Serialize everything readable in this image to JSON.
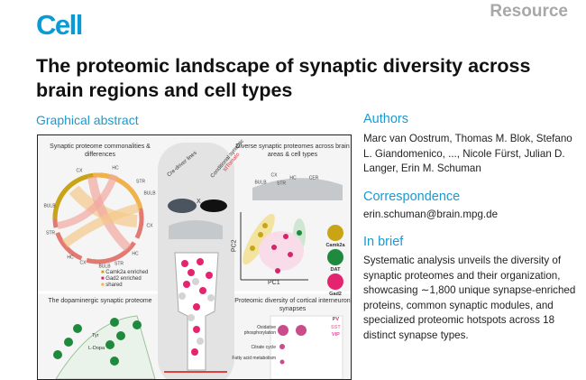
{
  "header": {
    "journal": "Cell",
    "article_type": "Resource"
  },
  "title": "The proteomic landscape of synaptic diversity across brain regions and cell types",
  "graphical_abstract": {
    "label": "Graphical abstract",
    "panel_top_left": {
      "title": "Synaptic proteome commonalities & differences",
      "regions": [
        "CX",
        "HC",
        "STR",
        "BULB",
        "CX",
        "HC",
        "STR",
        "BULB",
        "CX",
        "HC",
        "STR",
        "BULB"
      ],
      "legend": [
        "Camk2a enriched",
        "Gad2 enriched",
        "shared"
      ]
    },
    "panel_center": {
      "label_left": "Cre-driver lines",
      "cross": "X",
      "label_right": "Conditional synaptic",
      "label_red": "tdTomato"
    },
    "panel_top_right": {
      "title": "Diverse synaptic proteomes across brain areas & cell types",
      "regions": [
        "BULB",
        "CX",
        "STR",
        "HC",
        "CER"
      ],
      "x_axis": "PC1",
      "y_axis": "PC2",
      "cell_types": [
        "Camk2a",
        "DAT",
        "Gad2"
      ]
    },
    "panel_bottom_left": {
      "title": "The dopaminergic synaptic proteome",
      "pathway": [
        "Tyr",
        "L-Dopa"
      ]
    },
    "panel_bottom_right": {
      "title": "Proteomic diversity of cortical interneuron synapses",
      "legend": [
        "PV",
        "SST",
        "VIP"
      ],
      "rows": [
        "Oxidative phosphorylation",
        "Citrate cycle",
        "Fatty acid metabolism"
      ]
    },
    "colors": {
      "camk2a": "#c9a516",
      "gad2": "#d6246b",
      "dat": "#1f8a3e",
      "shared": "#f0b24a"
    }
  },
  "authors": {
    "heading": "Authors",
    "text": "Marc van Oostrum, Thomas M. Blok, Stefano L. Giandomenico, ..., Nicole Fürst, Julian D. Langer, Erin M. Schuman"
  },
  "correspondence": {
    "heading": "Correspondence",
    "email": "erin.schuman@brain.mpg.de"
  },
  "in_brief": {
    "heading": "In brief",
    "text": "Systematic analysis unveils the diversity of synaptic proteomes and their organization, showcasing ∼1,800 unique synapse-enriched proteins, common synaptic modules, and specialized proteomic hotspots across 18 distinct synapse types."
  }
}
